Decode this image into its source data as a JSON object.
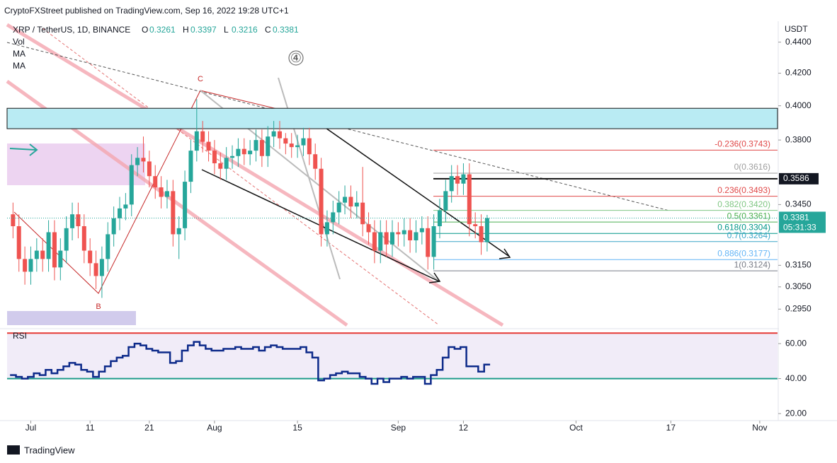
{
  "header": {
    "published": "CryptoFXStreet published on TradingView.com, Sep 16, 2022 19:28 UTC+1",
    "symbol": "XRP / TetherUS, 1D, BINANCE",
    "ohlc": [
      {
        "key": "O",
        "value": "0.3261"
      },
      {
        "key": "H",
        "value": "0.3397"
      },
      {
        "key": "L",
        "value": "0.3216"
      },
      {
        "key": "C",
        "value": "0.3381"
      }
    ],
    "indicators": [
      "Vol",
      "MA",
      "MA"
    ],
    "currency": "USDT",
    "rsi_title": "RSI",
    "brand": "TradingView"
  },
  "annotations": {
    "wave_c": "C",
    "wave_b": "B",
    "wave_4": "④"
  },
  "chart_data": {
    "type": "candlestick",
    "log_scale": true,
    "x": [
      "2022-06-28",
      "2022-06-29",
      "2022-06-30",
      "2022-07-01",
      "2022-07-02",
      "2022-07-03",
      "2022-07-04",
      "2022-07-05",
      "2022-07-06",
      "2022-07-07",
      "2022-07-08",
      "2022-07-09",
      "2022-07-10",
      "2022-07-11",
      "2022-07-12",
      "2022-07-13",
      "2022-07-14",
      "2022-07-15",
      "2022-07-16",
      "2022-07-17",
      "2022-07-18",
      "2022-07-19",
      "2022-07-20",
      "2022-07-21",
      "2022-07-22",
      "2022-07-23",
      "2022-07-24",
      "2022-07-25",
      "2022-07-26",
      "2022-07-27",
      "2022-07-28",
      "2022-07-29",
      "2022-07-30",
      "2022-07-31",
      "2022-08-01",
      "2022-08-02",
      "2022-08-03",
      "2022-08-04",
      "2022-08-05",
      "2022-08-06",
      "2022-08-07",
      "2022-08-08",
      "2022-08-09",
      "2022-08-10",
      "2022-08-11",
      "2022-08-12",
      "2022-08-13",
      "2022-08-14",
      "2022-08-15",
      "2022-08-16",
      "2022-08-17",
      "2022-08-18",
      "2022-08-19",
      "2022-08-20",
      "2022-08-21",
      "2022-08-22",
      "2022-08-23",
      "2022-08-24",
      "2022-08-25",
      "2022-08-26",
      "2022-08-27",
      "2022-08-28",
      "2022-08-29",
      "2022-08-30",
      "2022-08-31",
      "2022-09-01",
      "2022-09-02",
      "2022-09-03",
      "2022-09-04",
      "2022-09-05",
      "2022-09-06",
      "2022-09-07",
      "2022-09-08",
      "2022-09-09",
      "2022-09-10",
      "2022-09-11",
      "2022-09-12",
      "2022-09-13",
      "2022-09-14",
      "2022-09-15",
      "2022-09-16"
    ],
    "open": [
      0.34,
      0.334,
      0.318,
      0.312,
      0.318,
      0.322,
      0.318,
      0.331,
      0.314,
      0.322,
      0.333,
      0.34,
      0.334,
      0.322,
      0.316,
      0.31,
      0.318,
      0.33,
      0.338,
      0.343,
      0.345,
      0.366,
      0.37,
      0.368,
      0.36,
      0.354,
      0.349,
      0.352,
      0.33,
      0.333,
      0.357,
      0.374,
      0.385,
      0.379,
      0.374,
      0.367,
      0.364,
      0.37,
      0.371,
      0.375,
      0.372,
      0.374,
      0.38,
      0.371,
      0.382,
      0.385,
      0.381,
      0.378,
      0.376,
      0.377,
      0.381,
      0.372,
      0.364,
      0.33,
      0.336,
      0.341,
      0.346,
      0.349,
      0.344,
      0.346,
      0.335,
      0.331,
      0.322,
      0.331,
      0.325,
      0.331,
      0.33,
      0.332,
      0.327,
      0.331,
      0.333,
      0.319,
      0.334,
      0.342,
      0.352,
      0.36,
      0.356,
      0.361,
      0.335,
      0.334,
      0.3261
    ],
    "high": [
      0.346,
      0.34,
      0.324,
      0.324,
      0.328,
      0.328,
      0.337,
      0.337,
      0.328,
      0.339,
      0.346,
      0.346,
      0.34,
      0.328,
      0.322,
      0.324,
      0.336,
      0.344,
      0.349,
      0.351,
      0.372,
      0.376,
      0.382,
      0.374,
      0.366,
      0.36,
      0.358,
      0.358,
      0.339,
      0.363,
      0.38,
      0.404,
      0.391,
      0.385,
      0.38,
      0.373,
      0.376,
      0.377,
      0.381,
      0.381,
      0.38,
      0.386,
      0.386,
      0.388,
      0.391,
      0.391,
      0.384,
      0.384,
      0.383,
      0.387,
      0.387,
      0.378,
      0.37,
      0.342,
      0.347,
      0.352,
      0.355,
      0.355,
      0.352,
      0.365,
      0.341,
      0.337,
      0.337,
      0.337,
      0.337,
      0.336,
      0.338,
      0.338,
      0.337,
      0.339,
      0.339,
      0.34,
      0.348,
      0.358,
      0.366,
      0.366,
      0.367,
      0.367,
      0.341,
      0.34,
      0.3397
    ],
    "low": [
      0.328,
      0.312,
      0.306,
      0.306,
      0.312,
      0.312,
      0.312,
      0.308,
      0.308,
      0.316,
      0.327,
      0.328,
      0.316,
      0.31,
      0.304,
      0.3,
      0.312,
      0.324,
      0.332,
      0.337,
      0.339,
      0.36,
      0.362,
      0.354,
      0.348,
      0.343,
      0.343,
      0.324,
      0.318,
      0.327,
      0.351,
      0.368,
      0.373,
      0.368,
      0.361,
      0.358,
      0.358,
      0.364,
      0.365,
      0.366,
      0.366,
      0.368,
      0.365,
      0.365,
      0.376,
      0.375,
      0.372,
      0.37,
      0.37,
      0.371,
      0.366,
      0.358,
      0.324,
      0.324,
      0.33,
      0.335,
      0.34,
      0.338,
      0.338,
      0.329,
      0.325,
      0.316,
      0.316,
      0.319,
      0.319,
      0.324,
      0.324,
      0.321,
      0.321,
      0.325,
      0.313,
      0.313,
      0.328,
      0.336,
      0.346,
      0.35,
      0.35,
      0.329,
      0.328,
      0.32,
      0.3216
    ],
    "close": [
      0.334,
      0.318,
      0.312,
      0.318,
      0.322,
      0.318,
      0.331,
      0.314,
      0.322,
      0.333,
      0.34,
      0.334,
      0.322,
      0.316,
      0.31,
      0.318,
      0.33,
      0.338,
      0.343,
      0.345,
      0.366,
      0.37,
      0.368,
      0.36,
      0.354,
      0.349,
      0.352,
      0.33,
      0.333,
      0.357,
      0.374,
      0.385,
      0.379,
      0.374,
      0.367,
      0.364,
      0.37,
      0.371,
      0.375,
      0.372,
      0.374,
      0.38,
      0.371,
      0.382,
      0.385,
      0.381,
      0.378,
      0.376,
      0.377,
      0.381,
      0.372,
      0.364,
      0.33,
      0.336,
      0.341,
      0.346,
      0.349,
      0.344,
      0.346,
      0.335,
      0.331,
      0.322,
      0.331,
      0.325,
      0.331,
      0.33,
      0.332,
      0.327,
      0.331,
      0.333,
      0.319,
      0.334,
      0.342,
      0.352,
      0.36,
      0.356,
      0.361,
      0.335,
      0.334,
      0.3261,
      0.3381
    ],
    "up_color": "#26a69a",
    "down_color": "#ef5350",
    "xlim": [
      "2022-06-27",
      "2022-11-04"
    ],
    "xticks": [
      {
        "value": "2022-07-01",
        "label": "Jul"
      },
      {
        "value": "2022-07-11",
        "label": "11"
      },
      {
        "value": "2022-07-21",
        "label": "21"
      },
      {
        "value": "2022-08-01",
        "label": "Aug"
      },
      {
        "value": "2022-08-15",
        "label": "15"
      },
      {
        "value": "2022-09-01",
        "label": "Sep"
      },
      {
        "value": "2022-09-12",
        "label": "12"
      },
      {
        "value": "2022-10-01",
        "label": "Oct"
      },
      {
        "value": "2022-10-17",
        "label": "17"
      },
      {
        "value": "2022-11-01",
        "label": "Nov"
      }
    ],
    "ylim": [
      0.288,
      0.454
    ],
    "yticks": [
      {
        "value": 0.44,
        "label": "0.4400"
      },
      {
        "value": 0.42,
        "label": "0.4200"
      },
      {
        "value": 0.4,
        "label": "0.4000"
      },
      {
        "value": 0.38,
        "label": "0.3800"
      },
      {
        "value": 0.345,
        "label": "0.3450"
      },
      {
        "value": 0.315,
        "label": "0.3150"
      },
      {
        "value": 0.305,
        "label": "0.3050"
      },
      {
        "value": 0.295,
        "label": "0.2950"
      }
    ],
    "resistance_zone": [
      0.3865,
      0.3985
    ],
    "level": {
      "value": 0.3586,
      "label": "0.3586"
    },
    "last_price": {
      "value": 0.3381,
      "label": "0.3381",
      "countdown": "05:31:33"
    },
    "fib_levels": [
      {
        "value": 0.3743,
        "label": "-0.236(0.3743)",
        "color": "#e04848"
      },
      {
        "value": 0.3616,
        "label": "0(0.3616)",
        "color": "#9e9e9e"
      },
      {
        "value": 0.3493,
        "label": "0.236(0.3493)",
        "color": "#e04848"
      },
      {
        "value": 0.342,
        "label": "0.382(0.3420)",
        "color": "#81c784"
      },
      {
        "value": 0.3361,
        "label": "0.5(0.3361)",
        "color": "#4caf50"
      },
      {
        "value": 0.3304,
        "label": "0.618(0.3304)",
        "color": "#009688"
      },
      {
        "value": 0.3264,
        "label": "0.7(0.3264)",
        "color": "#3aa6c8"
      },
      {
        "value": 0.3177,
        "label": "0.886(0.3177)",
        "color": "#64b5f6"
      },
      {
        "value": 0.3124,
        "label": "1(0.3124)",
        "color": "#787b86"
      }
    ],
    "rsi": {
      "values": [
        42,
        41,
        40,
        41,
        43,
        42,
        45,
        43,
        45,
        47,
        49,
        48,
        45,
        44,
        41,
        44,
        47,
        50,
        52,
        53,
        58,
        60,
        59,
        57,
        56,
        55,
        55,
        49,
        50,
        56,
        59,
        61,
        59,
        57,
        56,
        56,
        57,
        57,
        58,
        57,
        57,
        58,
        56,
        58,
        59,
        58,
        57,
        57,
        57,
        58,
        55,
        52,
        39,
        40,
        42,
        43,
        44,
        43,
        43,
        41,
        40,
        37,
        40,
        38,
        40,
        40,
        41,
        40,
        41,
        41,
        37,
        42,
        45,
        52,
        58,
        57,
        58,
        47,
        47,
        44,
        48
      ],
      "color": "#0d2a8a",
      "ylim": [
        16,
        66.5
      ],
      "yticks": [
        {
          "value": 60,
          "label": "60.00"
        },
        {
          "value": 40,
          "label": "40.00"
        },
        {
          "value": 20,
          "label": "20.00"
        }
      ],
      "levels": [
        {
          "value": 66,
          "color": "#e53935"
        },
        {
          "value": 40,
          "color": "#1e9b8a"
        }
      ]
    }
  }
}
